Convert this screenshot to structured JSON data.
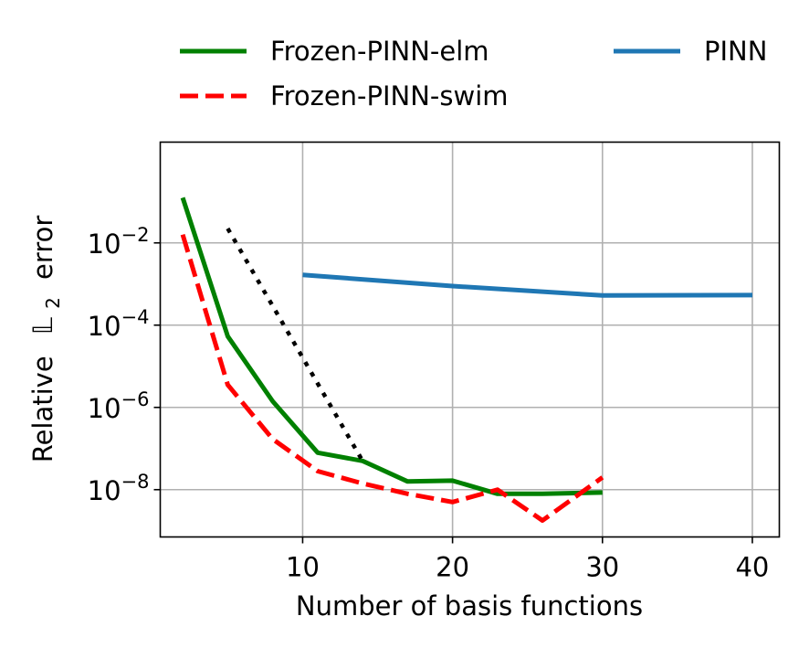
{
  "chart_data": {
    "type": "line",
    "title": "",
    "xlabel": "Number of basis functions",
    "ylabel_prefix": "Relative",
    "ylabel_symbol": "𝕃",
    "ylabel_subscript": "2",
    "ylabel_suffix": "error",
    "yscale": "log",
    "xlim": [
      0.5,
      41.8
    ],
    "ylim_log10": [
      -9.15,
      0.45
    ],
    "grid": true,
    "legend_position": "top (outside, above plot)",
    "xticks": [
      {
        "value": 10,
        "label": "10"
      },
      {
        "value": 20,
        "label": "20"
      },
      {
        "value": 30,
        "label": "30"
      },
      {
        "value": 40,
        "label": "40"
      }
    ],
    "yticks": [
      {
        "exp": -2,
        "base": "10",
        "sup": "−2"
      },
      {
        "exp": -4,
        "base": "10",
        "sup": "−4"
      },
      {
        "exp": -6,
        "base": "10",
        "sup": "−6"
      },
      {
        "exp": -8,
        "base": "10",
        "sup": "−8"
      }
    ],
    "series": [
      {
        "name": "Frozen-PINN-elm",
        "color": "#008000",
        "style": "solid",
        "in_legend": true,
        "x": [
          2,
          5,
          8,
          11,
          14,
          17,
          20,
          23,
          26,
          30
        ],
        "log10_y": [
          -0.9,
          -4.27,
          -5.85,
          -7.1,
          -7.3,
          -7.8,
          -7.78,
          -8.1,
          -8.1,
          -8.07
        ]
      },
      {
        "name": "Frozen-PINN-swim",
        "color": "#ff0000",
        "style": "dashed",
        "in_legend": true,
        "x": [
          2,
          5,
          8,
          11,
          14,
          17,
          20,
          23,
          26,
          30
        ],
        "log10_y": [
          -1.8,
          -5.45,
          -6.77,
          -7.55,
          -7.85,
          -8.1,
          -8.3,
          -8.0,
          -8.75,
          -7.7
        ]
      },
      {
        "name": "PINN",
        "color": "#1f77b4",
        "style": "solid",
        "in_legend": true,
        "x": [
          10,
          20,
          30,
          40
        ],
        "log10_y": [
          -2.78,
          -3.05,
          -3.28,
          -3.27
        ]
      },
      {
        "name": "reference slope",
        "color": "#000000",
        "style": "dotted",
        "in_legend": false,
        "x": [
          5,
          14
        ],
        "log10_y": [
          -1.65,
          -7.3
        ]
      }
    ]
  }
}
